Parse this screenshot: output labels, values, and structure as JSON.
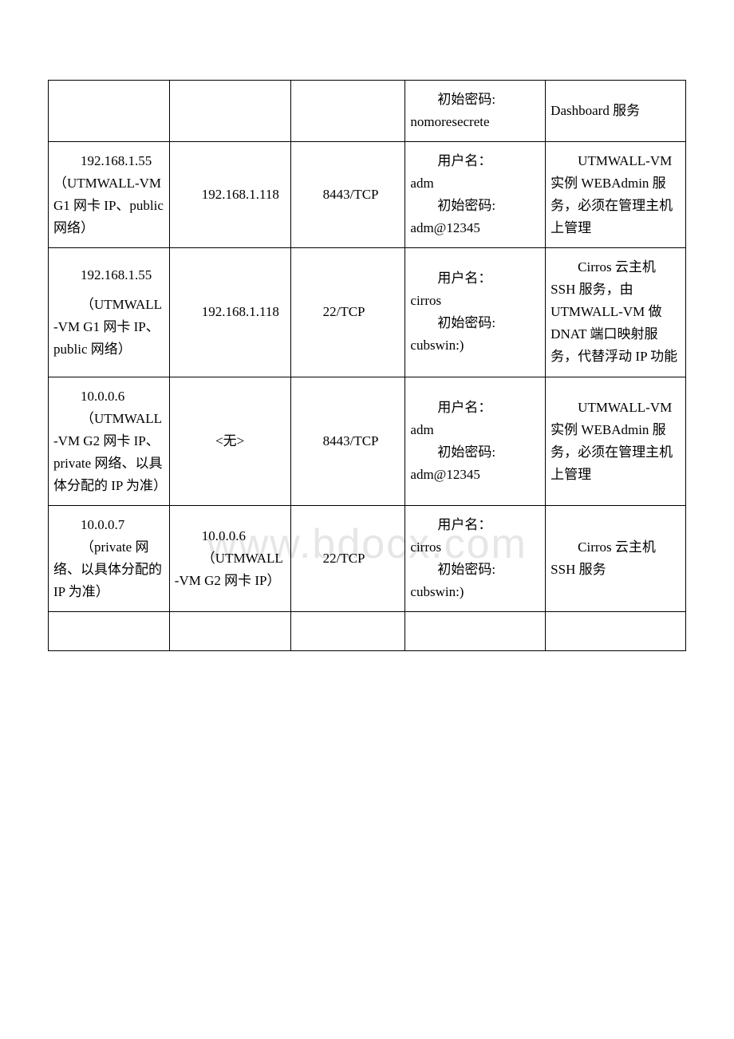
{
  "watermark": "www.bdocx.com",
  "rows": [
    {
      "c1": "",
      "c2": "",
      "c3": "",
      "c4a": "初始密码:",
      "c4b": "nomoresecrete",
      "c5": "Dashboard 服务"
    },
    {
      "c1a": "192.168.1.55",
      "c1b": "（UTMWALL-VM G1 网卡 IP、public 网络）",
      "c2": "192.168.1.118",
      "c3": "8443/TCP",
      "c4a": "用户名：",
      "c4b": "adm",
      "c4c": "初始密码:",
      "c4d": "adm@12345",
      "c5": "UTMWALL-VM 实例 WEBAdmin 服务，必须在管理主机上管理"
    },
    {
      "c1a": "192.168.1.55",
      "c1b": "（UTMWALL-VM G1 网卡 IP、public 网络）",
      "c2": "192.168.1.118",
      "c3": "22/TCP",
      "c4a": "用户名：",
      "c4b": "cirros",
      "c4c": "初始密码:",
      "c4d": "cubswin:)",
      "c5": "Cirros 云主机 SSH 服务，由 UTMWALL-VM 做 DNAT 端口映射服务，代替浮动 IP 功能"
    },
    {
      "c1a": "10.0.0.6",
      "c1b": "（UTMWALL-VM G2 网卡 IP、private 网络、以具体分配的 IP 为准）",
      "c2": "<无>",
      "c3": "8443/TCP",
      "c4a": "用户名：",
      "c4b": "adm",
      "c4c": "初始密码:",
      "c4d": "adm@12345",
      "c5": "UTMWALL-VM 实例 WEBAdmin 服务，必须在管理主机上管理"
    },
    {
      "c1a": "10.0.0.7",
      "c1b": "（private 网络、以具体分配的 IP 为准）",
      "c2a": "10.0.0.6",
      "c2b": "（UTMWALL-VM G2 网卡 IP）",
      "c3": "22/TCP",
      "c4a": "用户名：",
      "c4b": "cirros",
      "c4c": "初始密码:",
      "c4d": "cubswin:)",
      "c5": "Cirros 云主机 SSH 服务"
    }
  ]
}
